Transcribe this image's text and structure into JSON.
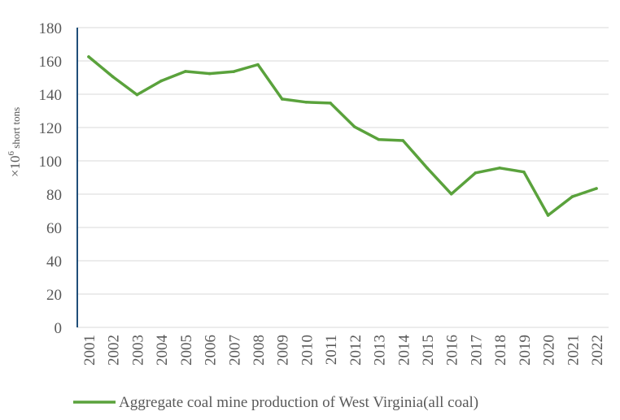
{
  "colors": {
    "series": "#5aa23c",
    "grid": "#d9d9d9",
    "axis": "#1f4e79",
    "text": "#595959"
  },
  "chart_data": {
    "type": "line",
    "x": [
      "2001",
      "2002",
      "2003",
      "2004",
      "2005",
      "2006",
      "2007",
      "2008",
      "2009",
      "2010",
      "2011",
      "2012",
      "2013",
      "2014",
      "2015",
      "2016",
      "2017",
      "2018",
      "2019",
      "2020",
      "2021",
      "2022"
    ],
    "series": [
      {
        "name": "Aggregate coal mine production of West Virginia(all coal)",
        "values": [
          162.5,
          150.5,
          139.7,
          148,
          153.7,
          152.4,
          153.6,
          157.8,
          137.1,
          135.2,
          134.7,
          120.4,
          112.8,
          112.2,
          95.7,
          80.1,
          92.8,
          95.7,
          93.3,
          67.3,
          78.5,
          83.4
        ]
      }
    ],
    "y_ticks": [
      "0",
      "20",
      "40",
      "60",
      "80",
      "100",
      "120",
      "140",
      "160",
      "180"
    ],
    "ylim": [
      0,
      180
    ],
    "ylabel_main": "×10",
    "ylabel_sup": "6",
    "ylabel_unit": " short tons",
    "grid": "horizontal",
    "legend_position": "bottom"
  }
}
